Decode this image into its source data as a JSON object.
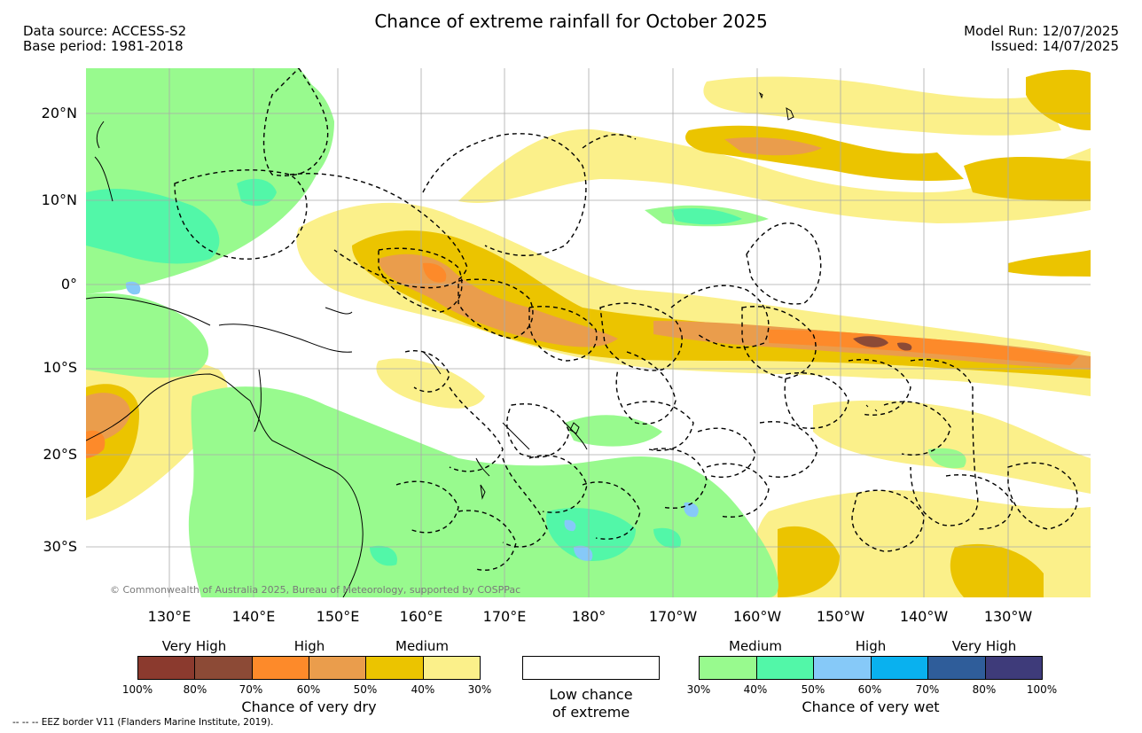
{
  "title": "Chance of extreme rainfall for October 2025",
  "meta": {
    "data_source": "Data source: ACCESS-S2",
    "base_period": "Base period: 1981-2018",
    "model_run": "Model Run: 12/07/2025",
    "issued": "Issued: 14/07/2025"
  },
  "map": {
    "lat_labels": [
      "20°N",
      "10°N",
      "0°",
      "10°S",
      "20°S",
      "30°S"
    ],
    "lon_labels": [
      "130°E",
      "140°E",
      "150°E",
      "160°E",
      "170°E",
      "180°",
      "170°W",
      "160°W",
      "150°W",
      "140°W",
      "130°W"
    ],
    "copyright": "© Commonwealth of Australia 2025, Bureau of Meteorology, supported by COSPPac",
    "colors": {
      "land_coast": "#000000",
      "eez_border": "#000000",
      "grid": "#aaaaaa"
    }
  },
  "legend": {
    "dry": {
      "categories": [
        "Very High",
        "High",
        "Medium"
      ],
      "ticks": [
        "100%",
        "80%",
        "70%",
        "60%",
        "50%",
        "40%",
        "30%"
      ],
      "colors": [
        "#8b3a2e",
        "#8c4a36",
        "#fd8a2a",
        "#ea9d4c",
        "#ebc400",
        "#fbf08a"
      ],
      "title": "Chance of very dry"
    },
    "low": {
      "label_line1": "Low chance",
      "label_line2": "of extreme"
    },
    "wet": {
      "categories": [
        "Medium",
        "High",
        "Very High"
      ],
      "ticks": [
        "30%",
        "40%",
        "50%",
        "60%",
        "70%",
        "80%",
        "100%"
      ],
      "colors": [
        "#98fa8e",
        "#52f7a8",
        "#86c9f8",
        "#09b1ef",
        "#2f5d9a",
        "#3e3b7a"
      ],
      "title": "Chance of very wet"
    }
  },
  "footer": "-- -- -- EEZ border V11 (Flanders Marine Institute, 2019)."
}
